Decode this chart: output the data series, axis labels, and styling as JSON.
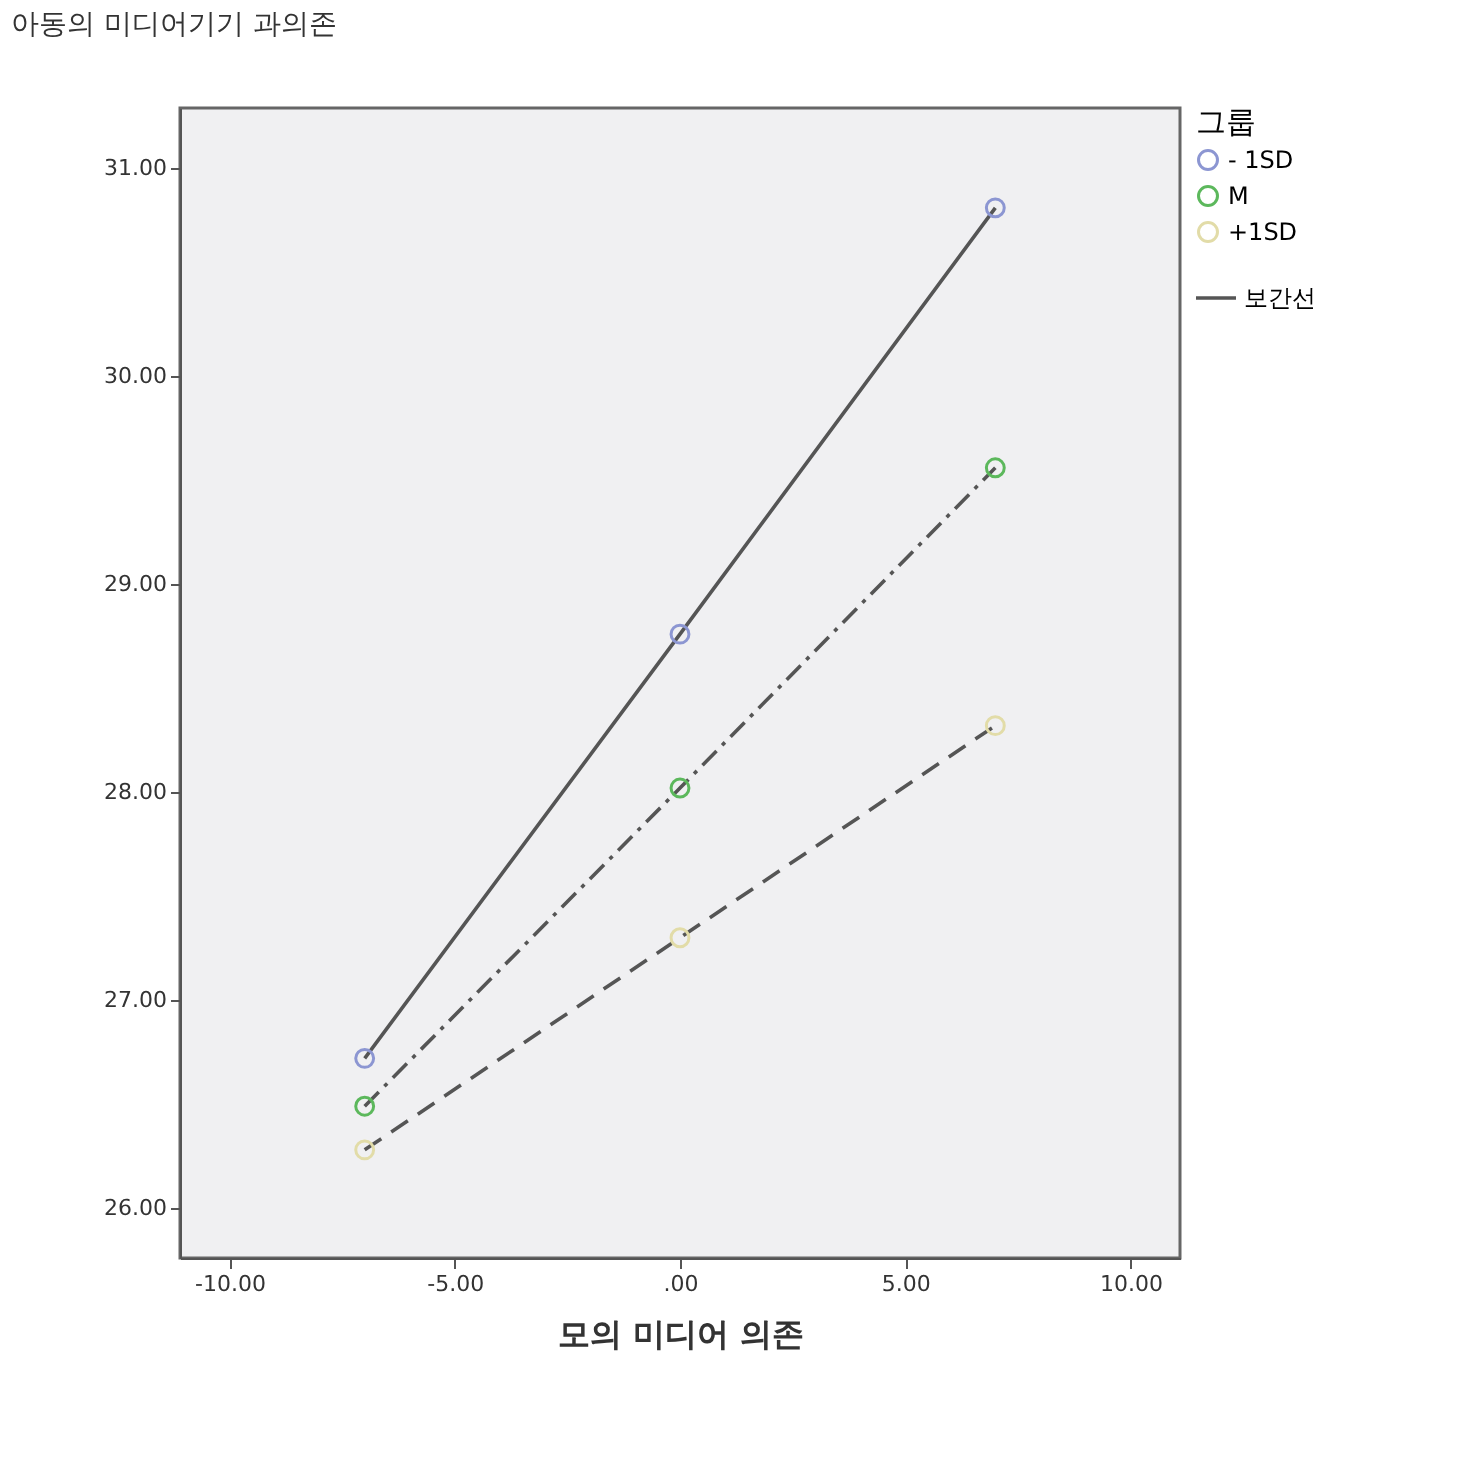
{
  "chart_data": {
    "type": "line",
    "ylabel": "아동의 미디어기기 과의존",
    "xlabel": "모의 미디어 의존",
    "legend_title": "그룹",
    "x": [
      -7,
      0,
      7
    ],
    "xlim": [
      -11.1,
      11.1
    ],
    "ylim": [
      25.76,
      31.29
    ],
    "xticks": [
      {
        "value": -10,
        "label": "-10.00"
      },
      {
        "value": -5,
        "label": "-5.00"
      },
      {
        "value": 0,
        "label": ".00"
      },
      {
        "value": 5,
        "label": "5.00"
      },
      {
        "value": 10,
        "label": "10.00"
      }
    ],
    "yticks": [
      {
        "value": 26,
        "label": "26.00"
      },
      {
        "value": 27,
        "label": "27.00"
      },
      {
        "value": 28,
        "label": "28.00"
      },
      {
        "value": 29,
        "label": "29.00"
      },
      {
        "value": 30,
        "label": "30.00"
      },
      {
        "value": 31,
        "label": "31.00"
      }
    ],
    "series": [
      {
        "name": "- 1SD",
        "color": "#8c96d2",
        "values": [
          26.72,
          28.76,
          30.81
        ],
        "line_style": "solid"
      },
      {
        "name": "M",
        "color": "#5cb85c",
        "values": [
          26.49,
          28.02,
          29.56
        ],
        "line_style": "dotted"
      },
      {
        "name": "+1SD",
        "color": "#e2dca8",
        "values": [
          26.28,
          27.3,
          28.32
        ],
        "line_style": "dashed"
      }
    ],
    "annotations": [
      "보간선"
    ],
    "marker": "circle",
    "legend": "right",
    "grid": false
  }
}
